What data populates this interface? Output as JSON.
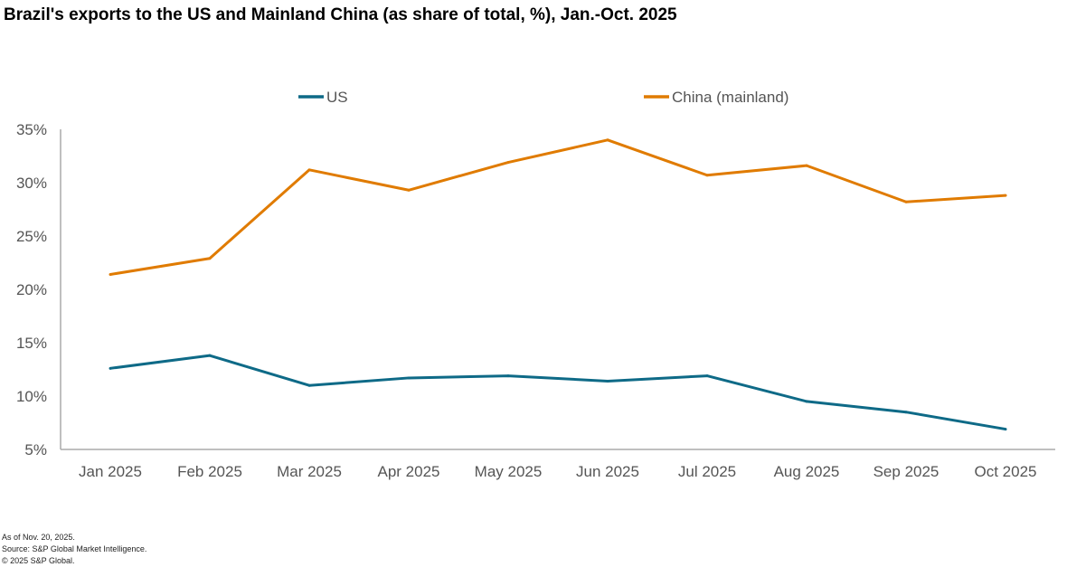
{
  "chart_data": {
    "type": "line",
    "title": "Brazil's exports to the US and Mainland China (as share of total, %), Jan.-Oct. 2025",
    "categories": [
      "Jan 2025",
      "Feb 2025",
      "Mar 2025",
      "Apr 2025",
      "May 2025",
      "Jun 2025",
      "Jul 2025",
      "Aug 2025",
      "Sep 2025",
      "Oct 2025"
    ],
    "series": [
      {
        "name": "US",
        "color": "#0e6a87",
        "values": [
          12.6,
          13.8,
          11.0,
          11.7,
          11.9,
          11.4,
          11.9,
          9.5,
          8.5,
          6.9
        ]
      },
      {
        "name": "China (mainland)",
        "color": "#e07b00",
        "values": [
          21.4,
          22.9,
          31.2,
          29.3,
          31.9,
          34.0,
          30.7,
          31.6,
          28.2,
          28.8
        ]
      }
    ],
    "ylim": [
      5,
      35
    ],
    "yticks": [
      5,
      10,
      15,
      20,
      25,
      30,
      35
    ],
    "ytick_labels": [
      "5%",
      "10%",
      "15%",
      "20%",
      "25%",
      "30%",
      "35%"
    ],
    "xlabel": "",
    "ylabel": "",
    "grid": false,
    "legend_position": "top"
  },
  "footnotes": [
    "As of Nov. 20, 2025.",
    "Source: S&P Global Market Intelligence.",
    "© 2025 S&P Global."
  ]
}
